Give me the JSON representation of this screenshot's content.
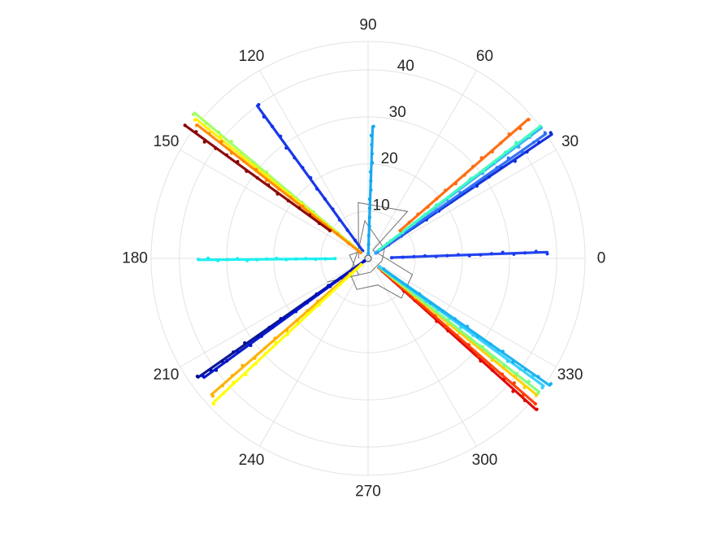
{
  "chart_data": {
    "type": "scatter",
    "coordinate_system": "polar",
    "title": "",
    "theta_unit": "degrees",
    "theta_direction": "counterclockwise",
    "theta_zero": "right",
    "theta_ticks": [
      "0",
      "30",
      "60",
      "90",
      "120",
      "150",
      "180",
      "210",
      "240",
      "270",
      "300",
      "330"
    ],
    "r_ticks": [
      "10",
      "20",
      "30",
      "40"
    ],
    "r_tick_values": [
      10,
      20,
      30,
      40
    ],
    "rlim": [
      0,
      46
    ],
    "r_tick_label_angle": 80,
    "grid": true,
    "grid_color": "#e3e3e3",
    "colormap": "jet",
    "series": [
      {
        "theta": 2,
        "r_range": [
          5,
          38
        ],
        "color": "#1a3cf0"
      },
      {
        "theta": 34,
        "r_range": [
          2,
          47
        ],
        "color": "#0a2ad8"
      },
      {
        "theta": 35,
        "r_range": [
          2,
          46
        ],
        "color": "#2c6cf8"
      },
      {
        "theta": 37,
        "r_range": [
          2,
          46
        ],
        "color": "#33a8ff"
      },
      {
        "theta": 37.5,
        "r_range": [
          3,
          46
        ],
        "color": "#3dfcc0"
      },
      {
        "theta": 41,
        "r_range": [
          9,
          45
        ],
        "color": "#ff6a0a"
      },
      {
        "theta": 88,
        "r_range": [
          1,
          28
        ],
        "color": "#0fa8f0"
      },
      {
        "theta": 126,
        "r_range": [
          2,
          40
        ],
        "color": "#1030e8"
      },
      {
        "theta": 140,
        "r_range": [
          2,
          48
        ],
        "color": "#a0ff60"
      },
      {
        "theta": 141,
        "r_range": [
          2,
          47
        ],
        "color": "#fff000"
      },
      {
        "theta": 142,
        "r_range": [
          2,
          46
        ],
        "color": "#ff8a00"
      },
      {
        "theta": 144,
        "r_range": [
          10,
          48
        ],
        "color": "#880000"
      },
      {
        "theta": 180.5,
        "r_range": [
          7,
          36
        ],
        "color": "#16f0f0"
      },
      {
        "theta": 215,
        "r_range": [
          1,
          44
        ],
        "color": "#000c90"
      },
      {
        "theta": 216,
        "r_range": [
          1,
          43
        ],
        "color": "#0010c8"
      },
      {
        "theta": 221,
        "r_range": [
          2,
          44
        ],
        "color": "#ffb000"
      },
      {
        "theta": 223,
        "r_range": [
          2,
          45
        ],
        "color": "#ffff00"
      },
      {
        "theta": 318,
        "r_range": [
          4,
          48
        ],
        "color": "#e00000"
      },
      {
        "theta": 319,
        "r_range": [
          3,
          47
        ],
        "color": "#ff3c00"
      },
      {
        "theta": 321,
        "r_range": [
          4,
          46
        ],
        "color": "#ffd000"
      },
      {
        "theta": 322,
        "r_range": [
          3,
          46
        ],
        "color": "#7cff7c"
      },
      {
        "theta": 324,
        "r_range": [
          3,
          46
        ],
        "color": "#30d0ff"
      },
      {
        "theta": 325,
        "r_range": [
          4,
          47
        ],
        "color": "#18b0f0"
      }
    ],
    "trajectory": {
      "color": "#707070",
      "points": [
        [
          180,
          2
        ],
        [
          100,
          12
        ],
        [
          50,
          13
        ],
        [
          60,
          2
        ],
        [
          -20,
          10
        ],
        [
          -50,
          11
        ],
        [
          -70,
          6
        ],
        [
          -110,
          7
        ],
        [
          -140,
          5
        ],
        [
          130,
          3
        ],
        [
          95,
          8
        ],
        [
          30,
          4
        ],
        [
          -10,
          3
        ],
        [
          -80,
          3
        ],
        [
          -150,
          10
        ],
        [
          -120,
          4
        ],
        [
          170,
          4
        ],
        [
          120,
          2
        ]
      ]
    }
  }
}
